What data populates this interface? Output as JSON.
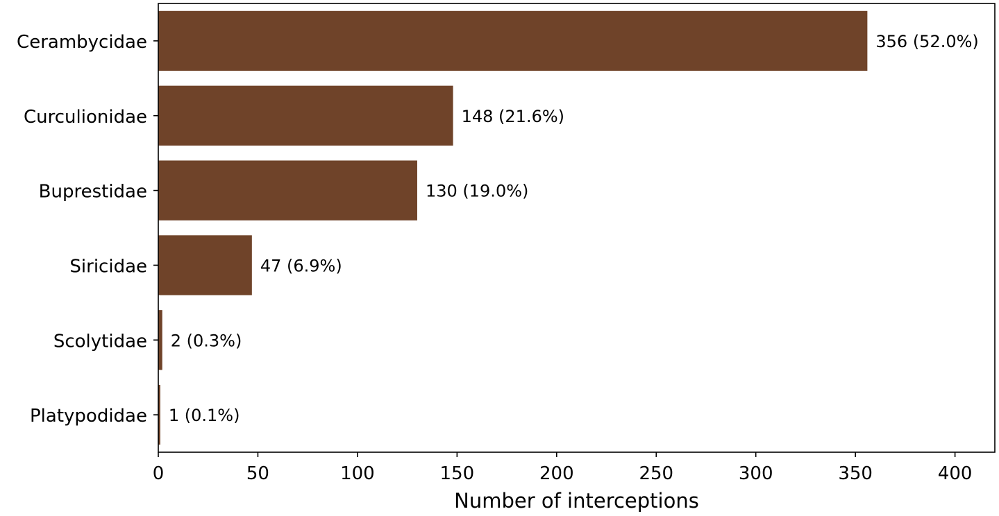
{
  "chart_data": {
    "type": "bar",
    "orientation": "horizontal",
    "categories": [
      "Cerambycidae",
      "Curculionidae",
      "Buprestidae",
      "Siricidae",
      "Scolytidae",
      "Platypodidae"
    ],
    "values": [
      356,
      148,
      130,
      47,
      2,
      1
    ],
    "value_labels": [
      "356 (52.0%)",
      "148 (21.6%)",
      "130 (19.0%)",
      "47 (6.9%)",
      "2 (0.3%)",
      "1 (0.1%)"
    ],
    "title": "",
    "xlabel": "Number of interceptions",
    "ylabel": "",
    "xlim": [
      0,
      420
    ],
    "xticks": [
      0,
      50,
      100,
      150,
      200,
      250,
      300,
      350,
      400
    ],
    "grid": false,
    "legend": "none",
    "bar_color": "#6f4329"
  }
}
